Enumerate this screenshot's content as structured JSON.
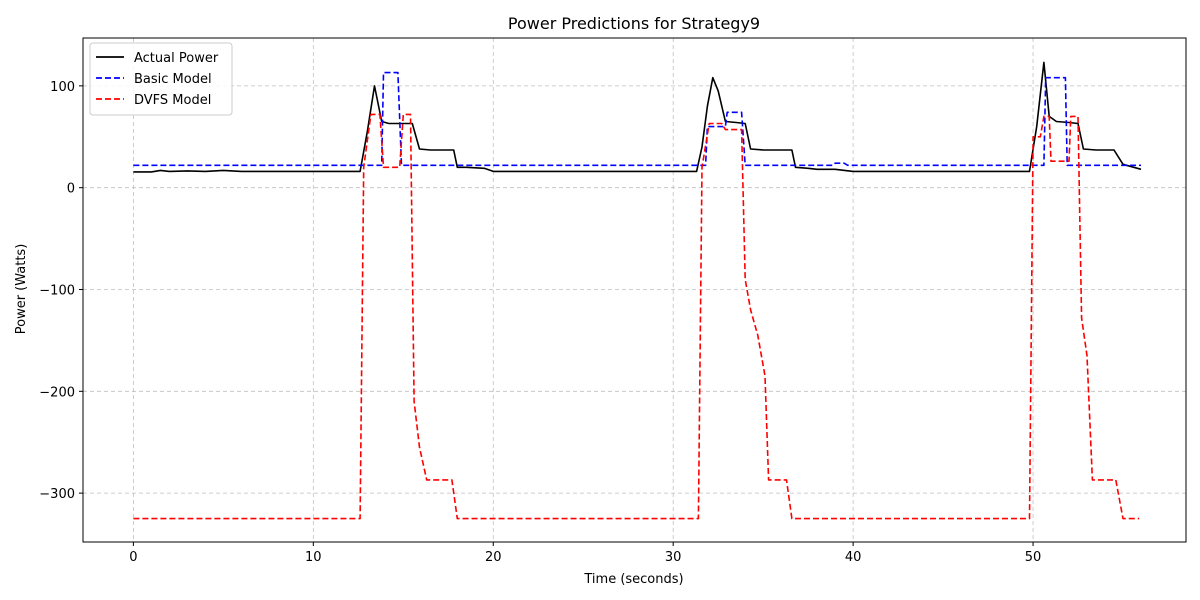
{
  "chart_data": {
    "type": "line",
    "title": "Power Predictions for Strategy9",
    "xlabel": "Time (seconds)",
    "ylabel": "Power (Watts)",
    "xlim": [
      -2.8,
      58.5
    ],
    "ylim": [
      -348,
      147
    ],
    "xticks": [
      0,
      10,
      20,
      30,
      40,
      50
    ],
    "yticks": [
      -300,
      -200,
      -100,
      0,
      100
    ],
    "ytick_labels": [
      "−300",
      "−200",
      "−100",
      "0",
      "100"
    ],
    "grid": true,
    "legend_position": "top-left",
    "series": [
      {
        "name": "Actual Power",
        "color": "#000000",
        "style": "solid",
        "points": [
          [
            0,
            15.5
          ],
          [
            1,
            15.5
          ],
          [
            1.5,
            17
          ],
          [
            2,
            16
          ],
          [
            3,
            16.5
          ],
          [
            4,
            16
          ],
          [
            5,
            17
          ],
          [
            6,
            16
          ],
          [
            7,
            16
          ],
          [
            8,
            16
          ],
          [
            9,
            16
          ],
          [
            10,
            16
          ],
          [
            11,
            16
          ],
          [
            12,
            16
          ],
          [
            12.6,
            16
          ],
          [
            13,
            55
          ],
          [
            13.4,
            100
          ],
          [
            13.8,
            65
          ],
          [
            14.2,
            63
          ],
          [
            15,
            63
          ],
          [
            15.5,
            63
          ],
          [
            15.9,
            38
          ],
          [
            16.5,
            37
          ],
          [
            17,
            37
          ],
          [
            17.8,
            37
          ],
          [
            18,
            20
          ],
          [
            18.5,
            20
          ],
          [
            19.5,
            19
          ],
          [
            20,
            16
          ],
          [
            22,
            16
          ],
          [
            24,
            16
          ],
          [
            26,
            16
          ],
          [
            28,
            16
          ],
          [
            30,
            16
          ],
          [
            31.3,
            16
          ],
          [
            31.6,
            40
          ],
          [
            31.9,
            80
          ],
          [
            32.2,
            108
          ],
          [
            32.5,
            95
          ],
          [
            32.9,
            65
          ],
          [
            33.5,
            64
          ],
          [
            34,
            63
          ],
          [
            34.3,
            38
          ],
          [
            35,
            37
          ],
          [
            36,
            37
          ],
          [
            36.6,
            37
          ],
          [
            36.8,
            20
          ],
          [
            37.5,
            19
          ],
          [
            38,
            18
          ],
          [
            39,
            18
          ],
          [
            40,
            16
          ],
          [
            42,
            16
          ],
          [
            44,
            16
          ],
          [
            46,
            16
          ],
          [
            48,
            16
          ],
          [
            49.8,
            16
          ],
          [
            50.2,
            60
          ],
          [
            50.6,
            123
          ],
          [
            50.9,
            70
          ],
          [
            51.3,
            65
          ],
          [
            52,
            64
          ],
          [
            52.5,
            63
          ],
          [
            52.8,
            38
          ],
          [
            53.5,
            37
          ],
          [
            54,
            37
          ],
          [
            54.5,
            37
          ],
          [
            55,
            23
          ],
          [
            56,
            18
          ]
        ]
      },
      {
        "name": "Basic Model",
        "color": "#0000ff",
        "style": "dashed",
        "points": [
          [
            0,
            22
          ],
          [
            13.5,
            22
          ],
          [
            13.8,
            22
          ],
          [
            13.9,
            113
          ],
          [
            14.7,
            113
          ],
          [
            14.9,
            22
          ],
          [
            31.6,
            22
          ],
          [
            31.8,
            22
          ],
          [
            31.9,
            60
          ],
          [
            32.9,
            60
          ],
          [
            33,
            74
          ],
          [
            33.8,
            74
          ],
          [
            34,
            22
          ],
          [
            38.9,
            22
          ],
          [
            39,
            24
          ],
          [
            39.5,
            24
          ],
          [
            39.7,
            22
          ],
          [
            50.5,
            22
          ],
          [
            50.6,
            22
          ],
          [
            50.7,
            108
          ],
          [
            51.8,
            108
          ],
          [
            51.9,
            22
          ],
          [
            56,
            22
          ]
        ]
      },
      {
        "name": "DVFS Model",
        "color": "#ff0000",
        "style": "dashed",
        "points": [
          [
            0,
            -325
          ],
          [
            12.4,
            -325
          ],
          [
            12.6,
            -325
          ],
          [
            12.8,
            20
          ],
          [
            13.2,
            72
          ],
          [
            13.7,
            72
          ],
          [
            13.9,
            20
          ],
          [
            14.8,
            20
          ],
          [
            15,
            72
          ],
          [
            15.4,
            72
          ],
          [
            15.6,
            -210
          ],
          [
            15.9,
            -255
          ],
          [
            16.3,
            -287
          ],
          [
            17.7,
            -287
          ],
          [
            18,
            -325
          ],
          [
            31.2,
            -325
          ],
          [
            31.4,
            -325
          ],
          [
            31.6,
            20
          ],
          [
            32,
            63
          ],
          [
            32.7,
            63
          ],
          [
            32.9,
            57
          ],
          [
            33.8,
            57
          ],
          [
            34,
            -90
          ],
          [
            34.3,
            -120
          ],
          [
            34.7,
            -145
          ],
          [
            35.1,
            -185
          ],
          [
            35.3,
            -287
          ],
          [
            36.3,
            -287
          ],
          [
            36.6,
            -325
          ],
          [
            49.6,
            -325
          ],
          [
            49.8,
            -325
          ],
          [
            50,
            50
          ],
          [
            50.4,
            50
          ],
          [
            50.6,
            70
          ],
          [
            50.9,
            70
          ],
          [
            51,
            26
          ],
          [
            52,
            26
          ],
          [
            52.1,
            70
          ],
          [
            52.5,
            70
          ],
          [
            52.7,
            -128
          ],
          [
            53,
            -165
          ],
          [
            53.3,
            -287
          ],
          [
            54.6,
            -287
          ],
          [
            55,
            -325
          ],
          [
            55.9,
            -325
          ]
        ]
      }
    ]
  }
}
